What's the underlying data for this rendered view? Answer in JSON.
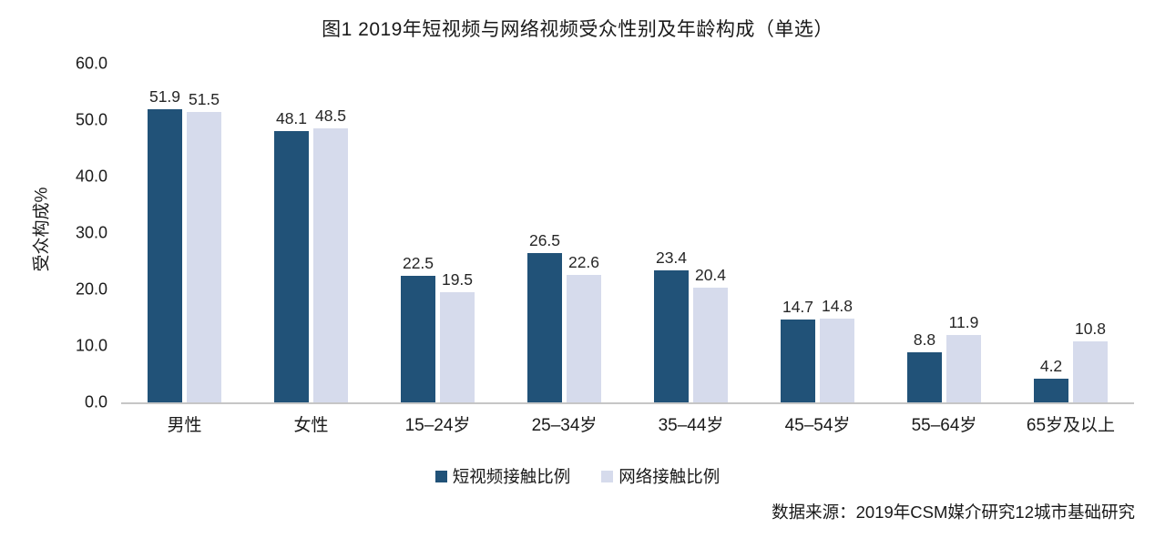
{
  "title": "图1  2019年短视频与网络视频受众性别及年龄构成（单选）",
  "source": "数据来源：2019年CSM媒介研究12城市基础研究",
  "colors": {
    "series1": "#215278",
    "series2": "#d6dbec",
    "axis_line": "#c6c6c6",
    "text": "#1a1a1a"
  },
  "chart_data": {
    "type": "bar",
    "title": "图1  2019年短视频与网络视频受众性别及年龄构成（单选）",
    "categories": [
      "男性",
      "女性",
      "15–24岁",
      "25–34岁",
      "35–44岁",
      "45–54岁",
      "55–64岁",
      "65岁及以上"
    ],
    "series": [
      {
        "name": "短视频接触比例",
        "color": "#215278",
        "values": [
          51.9,
          48.1,
          22.5,
          26.5,
          23.4,
          14.7,
          8.8,
          4.2
        ]
      },
      {
        "name": "网络接触比例",
        "color": "#d6dbec",
        "values": [
          51.5,
          48.5,
          19.5,
          22.6,
          20.4,
          14.8,
          11.9,
          10.8
        ]
      }
    ],
    "xlabel": "",
    "ylabel": "受众构成%",
    "ylim": [
      0,
      60
    ],
    "yticks": [
      0.0,
      10.0,
      20.0,
      30.0,
      40.0,
      50.0,
      60.0
    ],
    "grid": false,
    "legend_position": "bottom",
    "value_labels": true,
    "value_label_format": "one-decimal"
  }
}
